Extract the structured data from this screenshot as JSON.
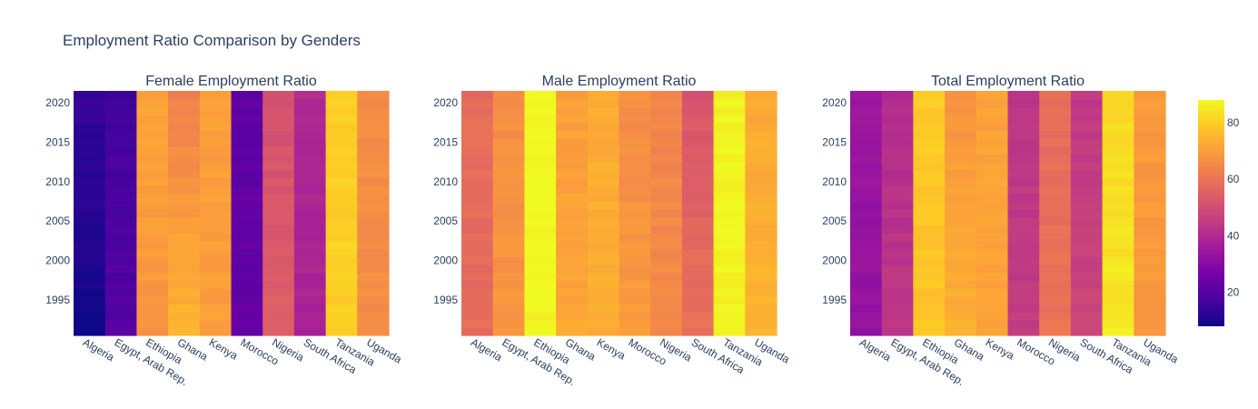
{
  "chart_data": {
    "type": "heatmap",
    "title": "Employment Ratio Comparison by Genders",
    "colorscale": "plasma",
    "zlim": [
      8,
      88
    ],
    "colorbar_ticks": [
      20,
      40,
      60,
      80
    ],
    "categories": [
      "Algeria",
      "Egypt, Arab Rep.",
      "Ethiopia",
      "Ghana",
      "Kenya",
      "Morocco",
      "Nigeria",
      "South Africa",
      "Tanzania",
      "Uganda"
    ],
    "years": [
      1991,
      1992,
      1993,
      1994,
      1995,
      1996,
      1997,
      1998,
      1999,
      2000,
      2001,
      2002,
      2003,
      2004,
      2005,
      2006,
      2007,
      2008,
      2009,
      2010,
      2011,
      2012,
      2013,
      2014,
      2015,
      2016,
      2017,
      2018,
      2019,
      2020,
      2021
    ],
    "y_ticks": [
      1995,
      2000,
      2005,
      2010,
      2015,
      2020
    ],
    "panels": [
      {
        "title": "Female Employment Ratio",
        "profiles": [
          {
            "start": 9,
            "end": 14
          },
          {
            "start": 20,
            "end": 16
          },
          {
            "start": 68,
            "end": 71
          },
          {
            "start": 75,
            "end": 63
          },
          {
            "start": 70,
            "end": 70
          },
          {
            "start": 23,
            "end": 22
          },
          {
            "start": 54,
            "end": 51
          },
          {
            "start": 38,
            "end": 40
          },
          {
            "start": 80,
            "end": 80
          },
          {
            "start": 66,
            "end": 66
          }
        ]
      },
      {
        "title": "Male Employment Ratio",
        "profiles": [
          {
            "start": 58,
            "end": 58
          },
          {
            "start": 68,
            "end": 66
          },
          {
            "start": 87,
            "end": 88
          },
          {
            "start": 72,
            "end": 70
          },
          {
            "start": 73,
            "end": 73
          },
          {
            "start": 69,
            "end": 66
          },
          {
            "start": 66,
            "end": 64
          },
          {
            "start": 60,
            "end": 52
          },
          {
            "start": 87,
            "end": 87
          },
          {
            "start": 75,
            "end": 72
          }
        ]
      },
      {
        "title": "Total Employment Ratio",
        "profiles": [
          {
            "start": 33,
            "end": 34
          },
          {
            "start": 44,
            "end": 40
          },
          {
            "start": 78,
            "end": 79
          },
          {
            "start": 74,
            "end": 68
          },
          {
            "start": 71,
            "end": 71
          },
          {
            "start": 45,
            "end": 44
          },
          {
            "start": 60,
            "end": 58
          },
          {
            "start": 48,
            "end": 44
          },
          {
            "start": 85,
            "end": 82
          },
          {
            "start": 69,
            "end": 69
          }
        ]
      }
    ]
  }
}
